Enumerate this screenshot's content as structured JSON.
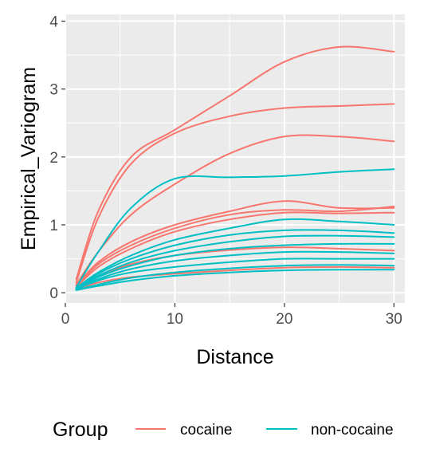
{
  "chart_data": {
    "type": "line",
    "xlabel": "Distance",
    "ylabel": "Empirical_Variogram",
    "xlim": [
      0,
      31
    ],
    "ylim": [
      -0.15,
      4.1
    ],
    "x_ticks": [
      0,
      10,
      20,
      30
    ],
    "y_ticks": [
      0,
      1,
      2,
      3,
      4
    ],
    "grid": true,
    "legend": {
      "title": "Group",
      "position": "bottom",
      "entries": [
        {
          "label": "cocaine",
          "color": "#F8766D"
        },
        {
          "label": "non-cocaine",
          "color": "#00BFC4"
        }
      ]
    },
    "x": [
      1,
      3,
      6,
      10,
      15,
      20,
      25,
      30
    ],
    "series": [
      {
        "group": "cocaine",
        "values": [
          0.2,
          1.2,
          2.0,
          2.4,
          2.9,
          3.4,
          3.62,
          3.55
        ]
      },
      {
        "group": "cocaine",
        "values": [
          0.15,
          1.1,
          1.9,
          2.35,
          2.6,
          2.72,
          2.75,
          2.78
        ]
      },
      {
        "group": "cocaine",
        "values": [
          0.12,
          0.6,
          1.15,
          1.6,
          2.05,
          2.3,
          2.3,
          2.23
        ]
      },
      {
        "group": "cocaine",
        "values": [
          0.1,
          0.45,
          0.75,
          1.0,
          1.2,
          1.35,
          1.25,
          1.25
        ]
      },
      {
        "group": "cocaine",
        "values": [
          0.1,
          0.42,
          0.7,
          0.95,
          1.15,
          1.22,
          1.2,
          1.27
        ]
      },
      {
        "group": "cocaine",
        "values": [
          0.08,
          0.38,
          0.65,
          0.9,
          1.08,
          1.18,
          1.17,
          1.18
        ]
      },
      {
        "group": "cocaine",
        "values": [
          0.06,
          0.25,
          0.42,
          0.55,
          0.63,
          0.67,
          0.65,
          0.62
        ]
      },
      {
        "group": "cocaine",
        "values": [
          0.05,
          0.15,
          0.23,
          0.28,
          0.33,
          0.37,
          0.38,
          0.37
        ]
      },
      {
        "group": "non-cocaine",
        "values": [
          0.08,
          0.6,
          1.25,
          1.68,
          1.7,
          1.72,
          1.78,
          1.82
        ]
      },
      {
        "group": "non-cocaine",
        "values": [
          0.07,
          0.3,
          0.55,
          0.78,
          0.95,
          1.08,
          1.05,
          1.0
        ]
      },
      {
        "group": "non-cocaine",
        "values": [
          0.06,
          0.28,
          0.5,
          0.7,
          0.85,
          0.92,
          0.92,
          0.88
        ]
      },
      {
        "group": "non-cocaine",
        "values": [
          0.06,
          0.25,
          0.45,
          0.62,
          0.75,
          0.83,
          0.84,
          0.82
        ]
      },
      {
        "group": "non-cocaine",
        "values": [
          0.05,
          0.23,
          0.4,
          0.55,
          0.65,
          0.7,
          0.72,
          0.72
        ]
      },
      {
        "group": "non-cocaine",
        "values": [
          0.05,
          0.2,
          0.35,
          0.47,
          0.55,
          0.6,
          0.6,
          0.58
        ]
      },
      {
        "group": "non-cocaine",
        "values": [
          0.05,
          0.18,
          0.3,
          0.38,
          0.45,
          0.5,
          0.5,
          0.5
        ]
      },
      {
        "group": "non-cocaine",
        "values": [
          0.04,
          0.12,
          0.22,
          0.3,
          0.36,
          0.4,
          0.41,
          0.4
        ]
      },
      {
        "group": "non-cocaine",
        "values": [
          0.04,
          0.1,
          0.18,
          0.25,
          0.3,
          0.33,
          0.34,
          0.34
        ]
      }
    ]
  }
}
